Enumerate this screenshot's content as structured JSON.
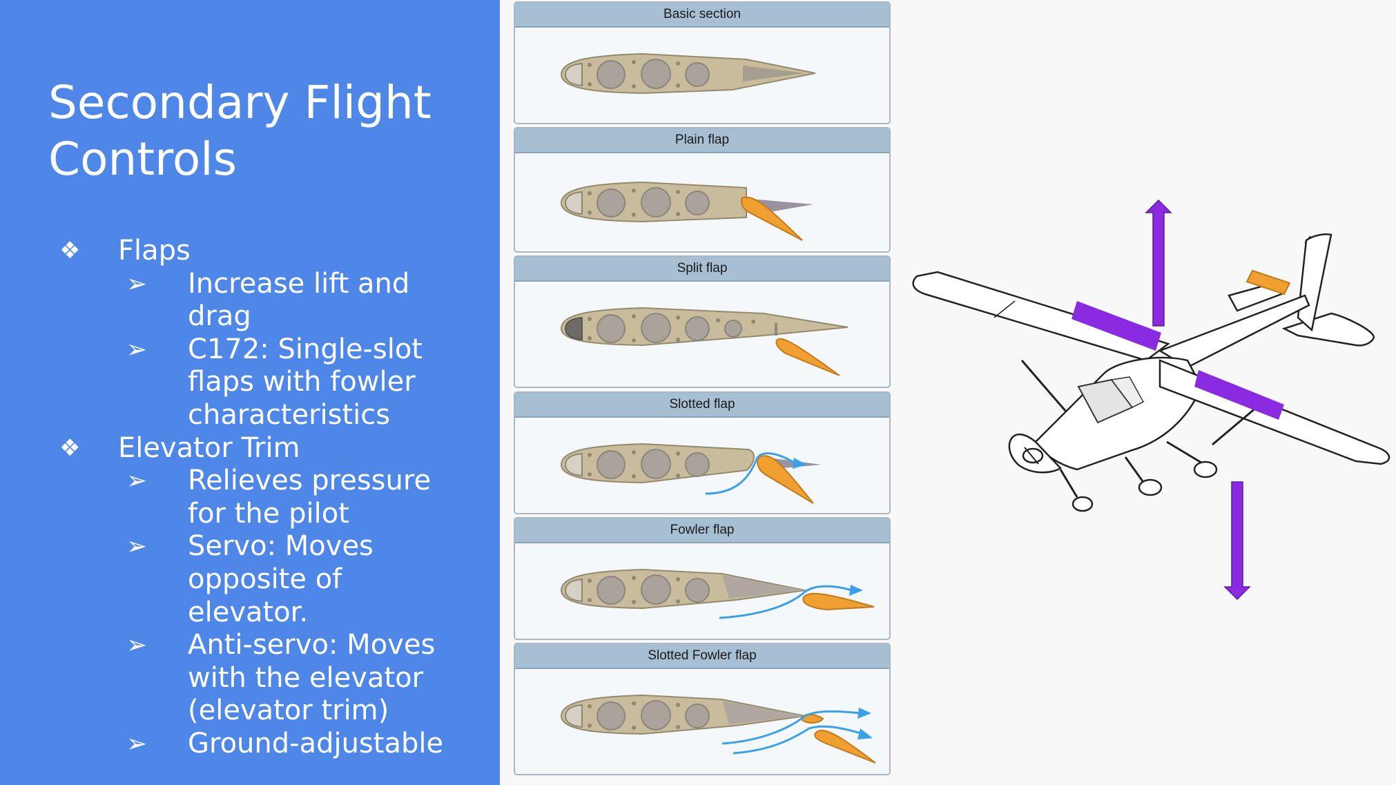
{
  "slide": {
    "title": "Secondary Flight Controls"
  },
  "bullets": [
    {
      "marker": "❖",
      "text": "Flaps",
      "children": [
        {
          "marker": "➢",
          "lines": [
            "Increase lift and",
            "drag"
          ]
        },
        {
          "marker": "➢",
          "lines": [
            "C172: Single-slot",
            "flaps with fowler",
            "characteristics"
          ]
        }
      ]
    },
    {
      "marker": "❖",
      "text": "Elevator Trim",
      "children": [
        {
          "marker": "➢",
          "lines": [
            "Relieves pressure",
            "for the pilot"
          ]
        },
        {
          "marker": "➢",
          "lines": [
            "Servo: Moves",
            "opposite of elevator."
          ]
        },
        {
          "marker": "➢",
          "lines": [
            "Anti-servo: Moves",
            "with the elevator",
            "(elevator trim)"
          ]
        },
        {
          "marker": "➢",
          "lines": [
            "Ground-adjustable"
          ]
        }
      ]
    }
  ],
  "flap_diagrams": [
    "Basic section",
    "Plain flap",
    "Split flap",
    "Slotted flap",
    "Fowler flap",
    "Slotted Fowler flap"
  ],
  "colors": {
    "panel": "#4f87e8",
    "arrow": "#8a2be2",
    "flap": "#f0a030",
    "airflow": "#3aa0e8"
  }
}
